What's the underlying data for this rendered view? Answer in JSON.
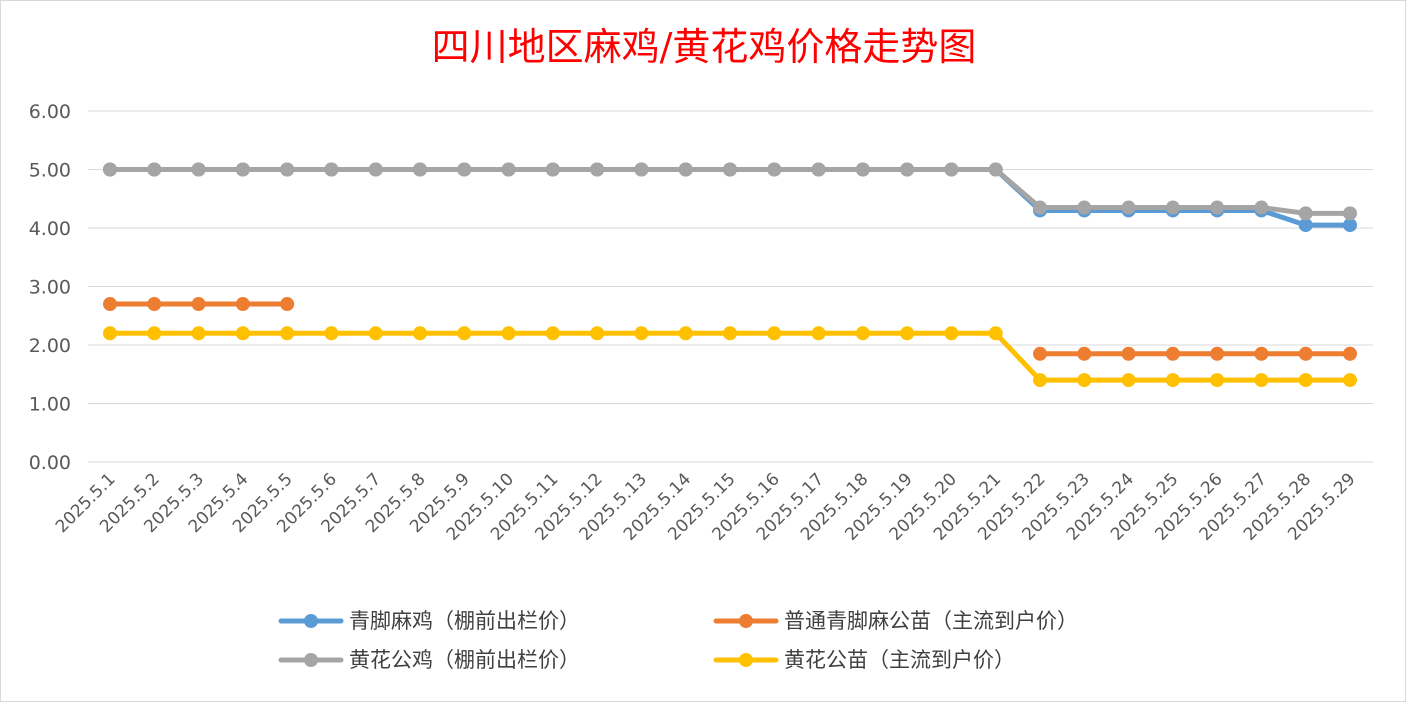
{
  "chart_data": {
    "type": "line",
    "title": "四川地区麻鸡/黄花鸡价格走势图",
    "xlabel": "",
    "ylabel": "",
    "ylim": [
      0,
      6
    ],
    "yticks": [
      "0.00",
      "1.00",
      "2.00",
      "3.00",
      "4.00",
      "5.00",
      "6.00"
    ],
    "grid": true,
    "legend_position": "bottom",
    "categories": [
      "2025.5.1",
      "2025.5.2",
      "2025.5.3",
      "2025.5.4",
      "2025.5.5",
      "2025.5.6",
      "2025.5.7",
      "2025.5.8",
      "2025.5.9",
      "2025.5.10",
      "2025.5.11",
      "2025.5.12",
      "2025.5.13",
      "2025.5.14",
      "2025.5.15",
      "2025.5.16",
      "2025.5.17",
      "2025.5.18",
      "2025.5.19",
      "2025.5.20",
      "2025.5.21",
      "2025.5.22",
      "2025.5.23",
      "2025.5.24",
      "2025.5.25",
      "2025.5.26",
      "2025.5.27",
      "2025.5.28",
      "2025.5.29"
    ],
    "series": [
      {
        "name": "青脚麻鸡（棚前出栏价）",
        "color": "#5b9bd5",
        "values": [
          5.0,
          5.0,
          5.0,
          5.0,
          5.0,
          5.0,
          5.0,
          5.0,
          5.0,
          5.0,
          5.0,
          5.0,
          5.0,
          5.0,
          5.0,
          5.0,
          5.0,
          5.0,
          5.0,
          5.0,
          5.0,
          4.3,
          4.3,
          4.3,
          4.3,
          4.3,
          4.3,
          4.05,
          4.05
        ]
      },
      {
        "name": "普通青脚麻公苗（主流到户价）",
        "color": "#ed7d31",
        "values": [
          2.7,
          2.7,
          2.7,
          2.7,
          2.7,
          null,
          null,
          null,
          null,
          null,
          null,
          null,
          null,
          null,
          null,
          null,
          null,
          null,
          null,
          null,
          null,
          1.85,
          1.85,
          1.85,
          1.85,
          1.85,
          1.85,
          1.85,
          1.85
        ]
      },
      {
        "name": "黄花公鸡（棚前出栏价）",
        "color": "#a5a5a5",
        "values": [
          5.0,
          5.0,
          5.0,
          5.0,
          5.0,
          5.0,
          5.0,
          5.0,
          5.0,
          5.0,
          5.0,
          5.0,
          5.0,
          5.0,
          5.0,
          5.0,
          5.0,
          5.0,
          5.0,
          5.0,
          5.0,
          4.35,
          4.35,
          4.35,
          4.35,
          4.35,
          4.35,
          4.25,
          4.25
        ]
      },
      {
        "name": "黄花公苗（主流到户价）",
        "color": "#ffc000",
        "values": [
          2.2,
          2.2,
          2.2,
          2.2,
          2.2,
          2.2,
          2.2,
          2.2,
          2.2,
          2.2,
          2.2,
          2.2,
          2.2,
          2.2,
          2.2,
          2.2,
          2.2,
          2.2,
          2.2,
          2.2,
          2.2,
          1.4,
          1.4,
          1.4,
          1.4,
          1.4,
          1.4,
          1.4,
          1.4
        ]
      }
    ]
  }
}
